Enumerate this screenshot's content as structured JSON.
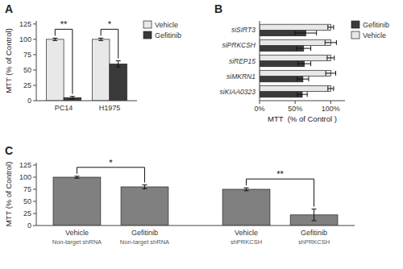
{
  "chart_data": [
    {
      "type": "bar",
      "title": "A",
      "categories": [
        "PC14",
        "H1975"
      ],
      "series": [
        {
          "name": "Vehicle",
          "color": "#e8e8e8",
          "values": [
            100,
            100
          ],
          "errors": [
            2,
            2
          ]
        },
        {
          "name": "Gefitinib",
          "color": "#3a3a3a",
          "values": [
            5,
            60
          ],
          "errors": [
            2,
            5
          ]
        }
      ],
      "ylabel": "MTT (% of Control)",
      "ylim": [
        0,
        130
      ],
      "yticks": [
        0,
        25,
        50,
        75,
        100,
        125
      ],
      "legend": "upper right",
      "annotations": [
        {
          "text": "**",
          "category": "PC14"
        },
        {
          "text": "*",
          "category": "H1975"
        }
      ]
    },
    {
      "type": "bar",
      "title": "B",
      "orientation": "horizontal",
      "categories": [
        "siSIRT3",
        "siPRKCSH",
        "siREP15",
        "siMKRN1",
        "siKIAA0323"
      ],
      "series": [
        {
          "name": "Gefitinib",
          "color": "#3a3a3a",
          "values": [
            0.65,
            0.62,
            0.63,
            0.61,
            0.6
          ],
          "errors": [
            0.15,
            0.1,
            0.09,
            0.08,
            0.07
          ]
        },
        {
          "name": "Vehicle",
          "color": "#e8e8e8",
          "values": [
            1,
            1,
            1,
            1,
            1
          ],
          "errors": [
            0.04,
            0.08,
            0.05,
            0.07,
            0.04
          ]
        }
      ],
      "xlabel": "MTT  (% of Control )",
      "xlim": [
        0,
        1.2
      ],
      "xticks": [
        {
          "value": 0,
          "label": "0%"
        },
        {
          "value": 0.5,
          "label": "50%"
        },
        {
          "value": 1.0,
          "label": "100%"
        }
      ],
      "legend": "upper right"
    },
    {
      "type": "bar",
      "title": "C",
      "categories": [
        "Vehicle",
        "Gefitinib",
        "Vehicle",
        "Gefitinib"
      ],
      "subcategories": [
        "Non-target shRNA",
        "Non-target shRNA",
        "shPRKCSH",
        "shPRKCSH"
      ],
      "values": [
        100,
        80,
        75,
        22
      ],
      "errors": [
        2,
        4,
        3,
        12
      ],
      "color": "#808080",
      "ylabel": "MTT (% of Control)",
      "ylim": [
        0,
        130
      ],
      "yticks": [
        0,
        25,
        50,
        75,
        100,
        125
      ],
      "annotations": [
        {
          "text": "*",
          "bars": [
            0,
            1
          ]
        },
        {
          "text": "**",
          "bars": [
            2,
            3
          ]
        }
      ]
    }
  ]
}
